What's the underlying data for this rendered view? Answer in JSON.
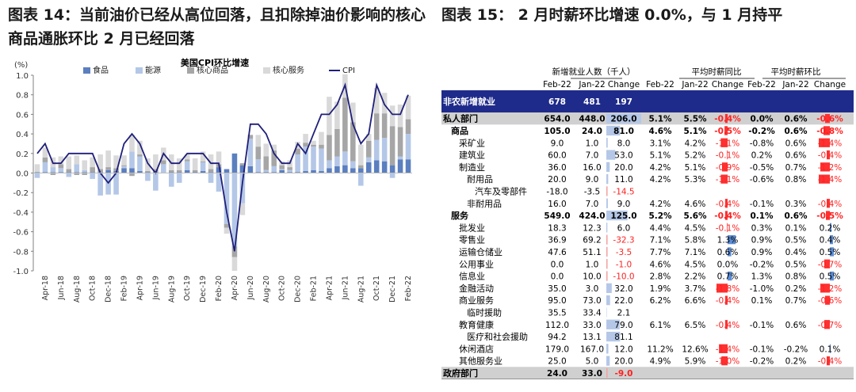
{
  "headings": {
    "fig14": "图表 14：当前油价已经从高位回落，且扣除掉油价影响的核心商品通胀环比 2 月已经回落",
    "fig15": "图表 15：  2 月时薪环比增速 0.0%，与 1 月持平"
  },
  "chart_data": [
    {
      "type": "bar",
      "title": "美国CPI环比增速",
      "ylabel": "(%)",
      "ylim": [
        -1.0,
        1.0
      ],
      "yticks": [
        "1.0",
        "0.8",
        "0.6",
        "0.4",
        "0.2",
        "0.0",
        "-0.2",
        "-0.4",
        "-0.6",
        "-0.8",
        "-1.0"
      ],
      "xticks": [
        "Apr-18",
        "Jun-18",
        "Aug-18",
        "Oct-18",
        "Dec-18",
        "Feb-19",
        "Apr-19",
        "Jun-19",
        "Aug-19",
        "Oct-19",
        "Dec-19",
        "Feb-20",
        "Apr-20",
        "Jun-20",
        "Aug-20",
        "Oct-20",
        "Dec-20",
        "Feb-21",
        "Apr-21",
        "Jun-21",
        "Aug-21",
        "Oct-21",
        "Dec-21",
        "Feb-22"
      ],
      "legend": [
        "食品",
        "能源",
        "核心商品",
        "核心服务",
        "CPI"
      ],
      "legend_position": "top",
      "colors": {
        "食品": "#5b7fbf",
        "能源": "#b4c7e7",
        "核心商品": "#a6a6a6",
        "核心服务": "#d9d9d9",
        "CPI": "#1f1f7a"
      },
      "x": [
        "Mar-18",
        "Apr-18",
        "May-18",
        "Jun-18",
        "Jul-18",
        "Aug-18",
        "Sep-18",
        "Oct-18",
        "Nov-18",
        "Dec-18",
        "Jan-19",
        "Feb-19",
        "Mar-19",
        "Apr-19",
        "May-19",
        "Jun-19",
        "Jul-19",
        "Aug-19",
        "Sep-19",
        "Oct-19",
        "Nov-19",
        "Dec-19",
        "Jan-20",
        "Feb-20",
        "Mar-20",
        "Apr-20",
        "May-20",
        "Jun-20",
        "Jul-20",
        "Aug-20",
        "Sep-20",
        "Oct-20",
        "Nov-20",
        "Dec-20",
        "Jan-21",
        "Feb-21",
        "Mar-21",
        "Apr-21",
        "May-21",
        "Jun-21",
        "Jul-21",
        "Aug-21",
        "Sep-21",
        "Oct-21",
        "Nov-21",
        "Dec-21",
        "Jan-22",
        "Feb-22"
      ],
      "series": [
        {
          "name": "食品",
          "stack": [
            0.01,
            0.01,
            0.01,
            0.01,
            0.01,
            0.01,
            0.01,
            0.01,
            0.01,
            0.03,
            0.02,
            0.05,
            0.05,
            0.02,
            0.01,
            0.01,
            0.0,
            0.01,
            0.01,
            0.03,
            0.01,
            0.02,
            0.01,
            0.06,
            0.04,
            0.2,
            0.08,
            0.07,
            0.01,
            0.01,
            0.01,
            0.03,
            0.01,
            0.01,
            0.02,
            0.03,
            0.02,
            0.05,
            0.07,
            0.08,
            0.05,
            0.05,
            0.11,
            0.13,
            0.12,
            0.08,
            0.14,
            0.14
          ]
        },
        {
          "name": "能源",
          "stack": [
            -0.05,
            0.1,
            0.05,
            0.04,
            -0.04,
            0.08,
            0.02,
            -0.06,
            -0.23,
            -0.22,
            -0.22,
            0.02,
            0.17,
            0.15,
            -0.08,
            -0.18,
            0.09,
            -0.14,
            -0.1,
            0.09,
            0.0,
            0.09,
            -0.1,
            -0.19,
            -0.52,
            -0.75,
            -0.31,
            0.28,
            0.13,
            0.02,
            0.06,
            0.01,
            0.02,
            0.18,
            0.25,
            0.24,
            0.23,
            0.08,
            0.1,
            0.14,
            0.07,
            -0.13,
            0.05,
            0.21,
            0.24,
            -0.05,
            0.03,
            0.26
          ]
        },
        {
          "name": "核心商品",
          "stack": [
            0.0,
            0.05,
            -0.02,
            0.04,
            0.03,
            -0.02,
            -0.02,
            0.05,
            0.03,
            0.03,
            0.03,
            0.01,
            -0.03,
            0.02,
            0.01,
            0.03,
            0.04,
            0.02,
            0.02,
            0.02,
            0.02,
            0.01,
            0.03,
            0.03,
            -0.04,
            -0.11,
            0.02,
            0.04,
            0.13,
            0.14,
            0.16,
            0.04,
            0.03,
            0.06,
            0.04,
            0.02,
            0.04,
            0.26,
            0.28,
            0.55,
            0.4,
            0.03,
            0.17,
            0.27,
            0.25,
            0.4,
            0.3,
            0.15
          ]
        },
        {
          "name": "核心服务",
          "stack": [
            0.08,
            0.1,
            0.1,
            0.08,
            0.13,
            0.09,
            0.1,
            0.1,
            0.15,
            0.17,
            0.13,
            0.1,
            0.17,
            0.14,
            0.13,
            0.15,
            0.13,
            0.16,
            0.12,
            0.05,
            0.12,
            0.1,
            0.15,
            0.13,
            -0.06,
            -0.14,
            -0.12,
            0.0,
            0.12,
            0.13,
            0.06,
            0.04,
            0.07,
            0.07,
            0.09,
            0.04,
            0.13,
            0.39,
            0.28,
            0.24,
            0.2,
            0.21,
            0.07,
            0.26,
            0.21,
            0.21,
            0.23,
            0.24
          ]
        },
        {
          "name": "CPI",
          "values": [
            0.2,
            0.3,
            0.1,
            0.1,
            0.2,
            0.2,
            0.2,
            0.2,
            0.0,
            -0.1,
            0.0,
            0.3,
            0.4,
            0.3,
            0.1,
            0.0,
            0.2,
            0.1,
            0.1,
            0.2,
            0.2,
            0.2,
            0.1,
            0.1,
            -0.4,
            -0.8,
            -0.1,
            0.5,
            0.5,
            0.4,
            0.2,
            0.1,
            0.1,
            0.3,
            0.2,
            0.4,
            0.6,
            0.6,
            0.7,
            0.9,
            0.5,
            0.3,
            0.4,
            0.9,
            0.7,
            0.6,
            0.6,
            0.8
          ]
        }
      ]
    },
    {
      "type": "table",
      "group_headers": [
        "新增就业人数（千人）",
        "平均时薪同比",
        "平均时薪环比"
      ],
      "sub_headers": [
        "Feb-22",
        "Jan-22",
        "Change",
        "Feb-22",
        "Jan-22",
        "Change",
        "Feb-22",
        "Jan-22",
        "Change"
      ],
      "rows": [
        {
          "label": "非农新增就业",
          "indent": 0,
          "style": "top",
          "e": [
            "678",
            "481",
            "197"
          ],
          "y": [
            "",
            "",
            ""
          ],
          "m": [
            "",
            "",
            ""
          ],
          "ev": null,
          "yv": null,
          "mv": null
        },
        {
          "label": "私人部门",
          "indent": 0,
          "style": "gray",
          "e": [
            "654.0",
            "448.0",
            "206.0"
          ],
          "y": [
            "5.1%",
            "5.5%",
            "-0.4%"
          ],
          "m": [
            "0.0%",
            "0.6%",
            "-0.6%"
          ],
          "ev": 206.0,
          "yv": -0.4,
          "mv": -0.6
        },
        {
          "label": "商品",
          "indent": 1,
          "style": "bold",
          "e": [
            "105.0",
            "24.0",
            "81.0"
          ],
          "y": [
            "4.6%",
            "5.1%",
            "-0.5%"
          ],
          "m": [
            "-0.2%",
            "0.6%",
            "-0.8%"
          ],
          "ev": 81.0,
          "yv": -0.5,
          "mv": -0.8
        },
        {
          "label": "采矿业",
          "indent": 2,
          "style": "",
          "e": [
            "9.0",
            "1.0",
            "8.0"
          ],
          "y": [
            "3.1%",
            "4.2%",
            "-1.1%"
          ],
          "m": [
            "-0.8%",
            "0.6%",
            "-1.4%"
          ],
          "ev": 8.0,
          "yv": -1.1,
          "mv": -1.4
        },
        {
          "label": "建筑业",
          "indent": 2,
          "style": "",
          "e": [
            "60.0",
            "7.0",
            "53.0"
          ],
          "y": [
            "5.1%",
            "5.2%",
            "-0.1%"
          ],
          "m": [
            "0.2%",
            "0.6%",
            "-0.4%"
          ],
          "ev": 53.0,
          "yv": -0.1,
          "mv": -0.4
        },
        {
          "label": "制造业",
          "indent": 2,
          "style": "",
          "e": [
            "36.0",
            "16.0",
            "20.0"
          ],
          "y": [
            "4.2%",
            "5.1%",
            "-0.9%"
          ],
          "m": [
            "-0.5%",
            "0.7%",
            "-1.2%"
          ],
          "ev": 20.0,
          "yv": -0.9,
          "mv": -1.2
        },
        {
          "label": "耐用品",
          "indent": 3,
          "style": "",
          "e": [
            "20.0",
            "9.0",
            "11.0"
          ],
          "y": [
            "4.2%",
            "5.3%",
            "-1.1%"
          ],
          "m": [
            "-0.6%",
            "0.8%",
            "-1.4%"
          ],
          "ev": 11.0,
          "yv": -1.1,
          "mv": -1.4
        },
        {
          "label": "汽车及零部件",
          "indent": 4,
          "style": "",
          "e": [
            "-18.0",
            "-3.5",
            "-14.5"
          ],
          "y": [
            "",
            "",
            ""
          ],
          "m": [
            "",
            "",
            ""
          ],
          "ev": -14.5,
          "yv": null,
          "mv": null
        },
        {
          "label": "非耐用品",
          "indent": 3,
          "style": "",
          "e": [
            "16.0",
            "7.0",
            "9.0"
          ],
          "y": [
            "4.2%",
            "4.6%",
            "-0.4%"
          ],
          "m": [
            "-0.1%",
            "0.3%",
            "-0.4%"
          ],
          "ev": 9.0,
          "yv": -0.4,
          "mv": -0.4
        },
        {
          "label": "服务",
          "indent": 1,
          "style": "bold",
          "e": [
            "549.0",
            "424.0",
            "125.0"
          ],
          "y": [
            "5.2%",
            "5.6%",
            "-0.4%"
          ],
          "m": [
            "0.1%",
            "0.6%",
            "-0.5%"
          ],
          "ev": 125.0,
          "yv": -0.4,
          "mv": -0.5
        },
        {
          "label": "批发业",
          "indent": 2,
          "style": "",
          "e": [
            "18.3",
            "12.3",
            "6.0"
          ],
          "y": [
            "4.4%",
            "4.5%",
            "-0.1%"
          ],
          "m": [
            "0.3%",
            "0.1%",
            "0.2%"
          ],
          "ev": 6.0,
          "yv": -0.1,
          "mv": 0.2
        },
        {
          "label": "零售业",
          "indent": 2,
          "style": "",
          "e": [
            "36.9",
            "69.2",
            "-32.3"
          ],
          "y": [
            "7.1%",
            "5.8%",
            "1.3%"
          ],
          "m": [
            "0.9%",
            "0.5%",
            "0.4%"
          ],
          "ev": -32.3,
          "yv": 1.3,
          "mv": 0.4
        },
        {
          "label": "运输仓储业",
          "indent": 2,
          "style": "",
          "e": [
            "47.6",
            "51.1",
            "-3.5"
          ],
          "y": [
            "7.7%",
            "7.1%",
            "0.6%"
          ],
          "m": [
            "0.9%",
            "0.4%",
            "0.5%"
          ],
          "ev": -3.5,
          "yv": 0.6,
          "mv": 0.5
        },
        {
          "label": "公用事业",
          "indent": 2,
          "style": "",
          "e": [
            "0.0",
            "1.0",
            "-1.0"
          ],
          "y": [
            "4.6%",
            "4.5%",
            "0.0%"
          ],
          "m": [
            "-0.2%",
            "0.5%",
            "-0.7%"
          ],
          "ev": -1.0,
          "yv": 0.0,
          "mv": -0.7
        },
        {
          "label": "信息业",
          "indent": 2,
          "style": "",
          "e": [
            "0.0",
            "10.0",
            "-10.0"
          ],
          "y": [
            "2.8%",
            "2.2%",
            "0.7%"
          ],
          "m": [
            "1.3%",
            "0.8%",
            "0.5%"
          ],
          "ev": -10.0,
          "yv": 0.7,
          "mv": 0.5
        },
        {
          "label": "金融活动",
          "indent": 2,
          "style": "",
          "e": [
            "35.0",
            "3.0",
            "32.0"
          ],
          "y": [
            "1.9%",
            "3.7%",
            "-1.8%"
          ],
          "m": [
            "-1.0%",
            "0.2%",
            "-1.2%"
          ],
          "ev": 32.0,
          "yv": -1.8,
          "mv": -1.2
        },
        {
          "label": "商业服务",
          "indent": 2,
          "style": "",
          "e": [
            "95.0",
            "73.0",
            "22.0"
          ],
          "y": [
            "6.2%",
            "6.6%",
            "-0.4%"
          ],
          "m": [
            "0.1%",
            "0.7%",
            "-0.6%"
          ],
          "ev": 22.0,
          "yv": -0.4,
          "mv": -0.6
        },
        {
          "label": "临时援助",
          "indent": 3,
          "style": "",
          "e": [
            "35.5",
            "33.4",
            "2.1"
          ],
          "y": [
            "",
            "",
            ""
          ],
          "m": [
            "",
            "",
            ""
          ],
          "ev": 2.1,
          "yv": null,
          "mv": null
        },
        {
          "label": "教育健康",
          "indent": 2,
          "style": "",
          "e": [
            "112.0",
            "33.0",
            "79.0"
          ],
          "y": [
            "6.1%",
            "6.5%",
            "-0.4%"
          ],
          "m": [
            "-0.1%",
            "0.6%",
            "-0.7%"
          ],
          "ev": 79.0,
          "yv": -0.4,
          "mv": -0.7
        },
        {
          "label": "医疗和社会援助",
          "indent": 3,
          "style": "",
          "e": [
            "94.2",
            "13.1",
            "81.1"
          ],
          "y": [
            "",
            "",
            ""
          ],
          "m": [
            "",
            "",
            ""
          ],
          "ev": 81.1,
          "yv": null,
          "mv": null
        },
        {
          "label": "休闲酒店",
          "indent": 2,
          "style": "",
          "e": [
            "179.0",
            "167.0",
            "12.0"
          ],
          "y": [
            "11.2%",
            "12.6%",
            "-1.4%"
          ],
          "m": [
            "-0.1%",
            "-0.2%",
            "0.1%"
          ],
          "ev": 12.0,
          "yv": -1.4,
          "mv": 0.1
        },
        {
          "label": "其他服务业",
          "indent": 2,
          "style": "",
          "e": [
            "25.0",
            "5.0",
            "20.0"
          ],
          "y": [
            "4.9%",
            "5.9%",
            "-1.0%"
          ],
          "m": [
            "-0.2%",
            "0.2%",
            "-0.4%"
          ],
          "ev": 20.0,
          "yv": -1.0,
          "mv": -0.4
        },
        {
          "label": "政府部门",
          "indent": 0,
          "style": "gray",
          "e": [
            "24.0",
            "33.0",
            "-9.0"
          ],
          "y": [
            "",
            "",
            ""
          ],
          "m": [
            "",
            "",
            ""
          ],
          "ev": -9.0,
          "yv": null,
          "mv": null
        }
      ]
    }
  ]
}
